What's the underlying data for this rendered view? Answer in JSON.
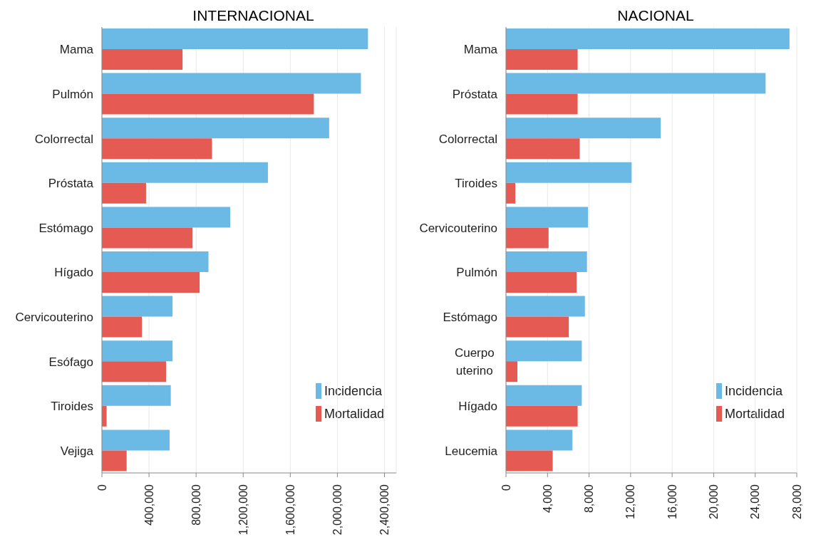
{
  "chart_data": [
    {
      "type": "bar",
      "orientation": "horizontal",
      "title": "INTERNACIONAL",
      "categories": [
        "Mama",
        "Pulmón",
        "Colorrectal",
        "Próstata",
        "Estómago",
        "Hígado",
        "Cervicouterino",
        "Esófago",
        "Tiroides",
        "Vejiga"
      ],
      "series": [
        {
          "name": "Incidencia",
          "color": "#6bb9e5",
          "values": [
            2260000,
            2200000,
            1930000,
            1410000,
            1090000,
            905000,
            600000,
            600000,
            585000,
            575000
          ]
        },
        {
          "name": "Mortalidad",
          "color": "#e55a52",
          "values": [
            685000,
            1800000,
            935000,
            375000,
            770000,
            830000,
            340000,
            545000,
            40000,
            210000
          ]
        }
      ],
      "xlim": [
        0,
        2500000
      ],
      "xticks": [
        {
          "value": 0,
          "label": "0"
        },
        {
          "value": 400000,
          "label": "400,000"
        },
        {
          "value": 800000,
          "label": "800,000"
        },
        {
          "value": 1200000,
          "label": "1,200,000"
        },
        {
          "value": 1600000,
          "label": "1,600,000"
        },
        {
          "value": 2000000,
          "label": "2,000,000"
        },
        {
          "value": 2400000,
          "label": "2,400,000"
        }
      ],
      "grid": "x",
      "legend": "bottom right"
    },
    {
      "type": "bar",
      "orientation": "horizontal",
      "title": "NACIONAL",
      "categories": [
        "Mama",
        "Próstata",
        "Colorrectal",
        "Tiroides",
        "Cervicouterino",
        "Pulmón",
        "Estómago",
        "Cuerpo uterino",
        "Hígado",
        "Leucemia"
      ],
      "series": [
        {
          "name": "Incidencia",
          "color": "#6bb9e5",
          "values": [
            27300,
            25000,
            14900,
            12100,
            7900,
            7800,
            7600,
            7300,
            7300,
            6400
          ]
        },
        {
          "name": "Mortalidad",
          "color": "#e55a52",
          "values": [
            6900,
            6900,
            7100,
            900,
            4100,
            6800,
            6050,
            1100,
            6900,
            4500
          ]
        }
      ],
      "xlim": [
        0,
        28000
      ],
      "xticks": [
        0,
        {
          "value": 4000,
          "label": "4,000"
        },
        {
          "value": 8000,
          "label": "8,000"
        },
        {
          "value": 12000,
          "label": "12,000"
        },
        {
          "value": 16000,
          "label": "16,000"
        },
        {
          "value": 20000,
          "label": "20,000"
        },
        {
          "value": 24000,
          "label": "24,000"
        },
        {
          "value": 28000,
          "label": "28,000"
        }
      ],
      "grid": "x",
      "legend": "bottom right"
    }
  ]
}
